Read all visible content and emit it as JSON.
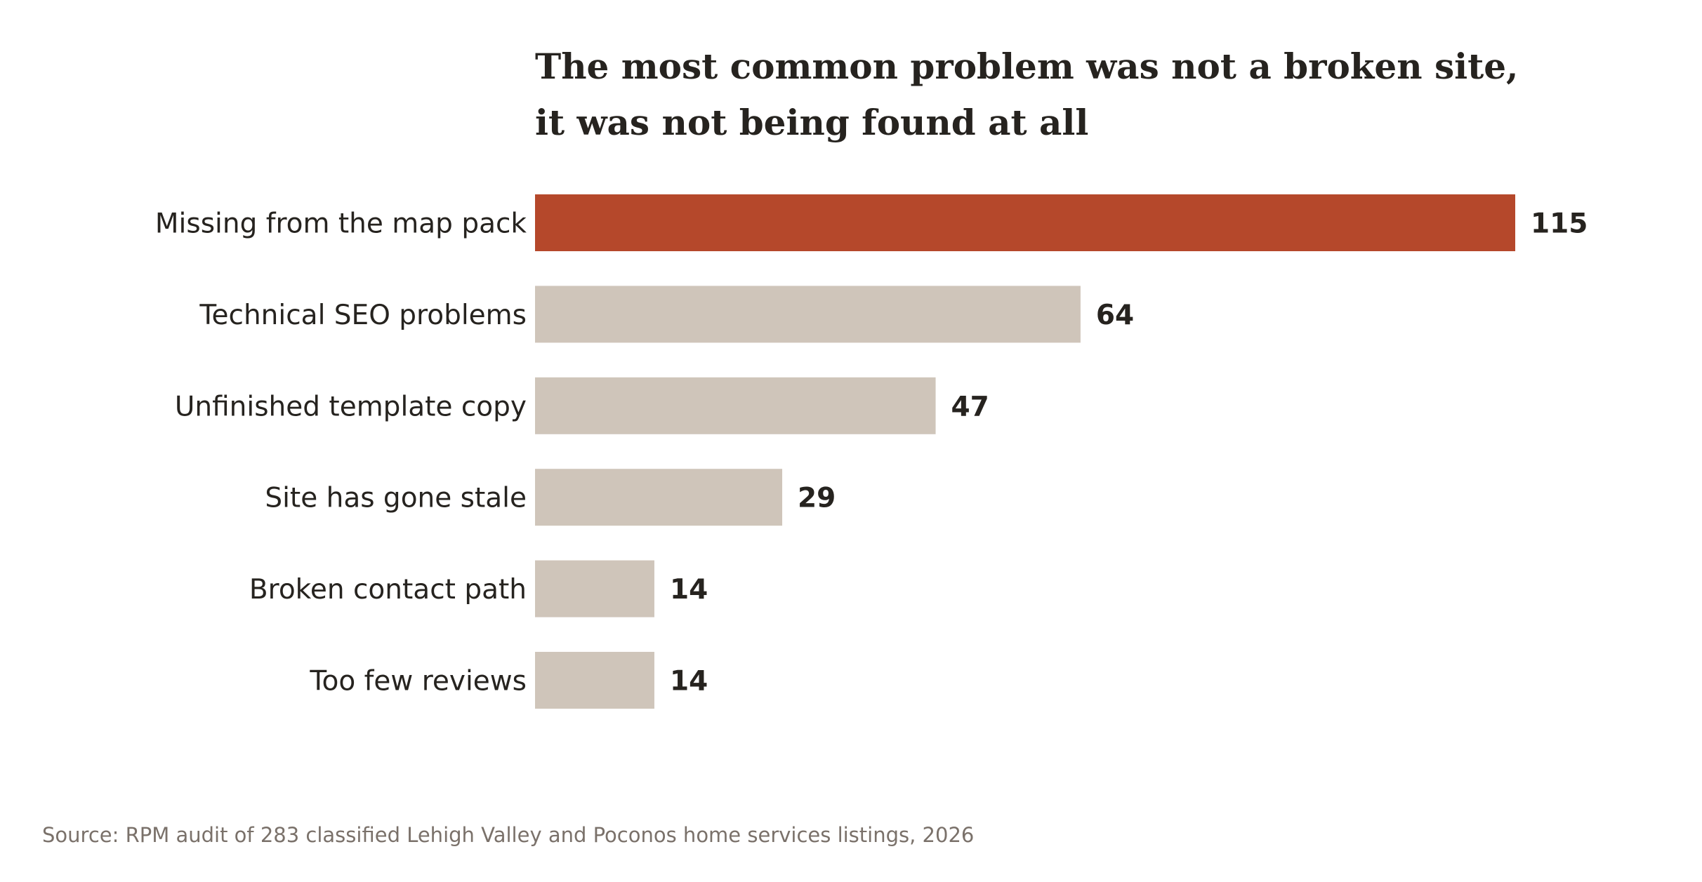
{
  "chart_data": {
    "type": "bar",
    "orientation": "horizontal",
    "title_lines": [
      "The most common problem was not a broken site,",
      "it was not being found at all"
    ],
    "categories": [
      "Missing from the map pack",
      "Technical SEO problems",
      "Unfinished template copy",
      "Site has gone stale",
      "Broken contact path",
      "Too few reviews"
    ],
    "values": [
      115,
      64,
      47,
      29,
      14,
      14
    ],
    "highlight_index": 0,
    "xlim": [
      0,
      115
    ],
    "grid": false,
    "axes_visible": false,
    "source": "Source: RPM audit of 283 classified Lehigh Valley and Poconos home services listings, 2026"
  },
  "colors": {
    "highlight": "#b5482b",
    "bar": "#cfc5ba",
    "text": "#26231f",
    "source": "#7a716a"
  }
}
